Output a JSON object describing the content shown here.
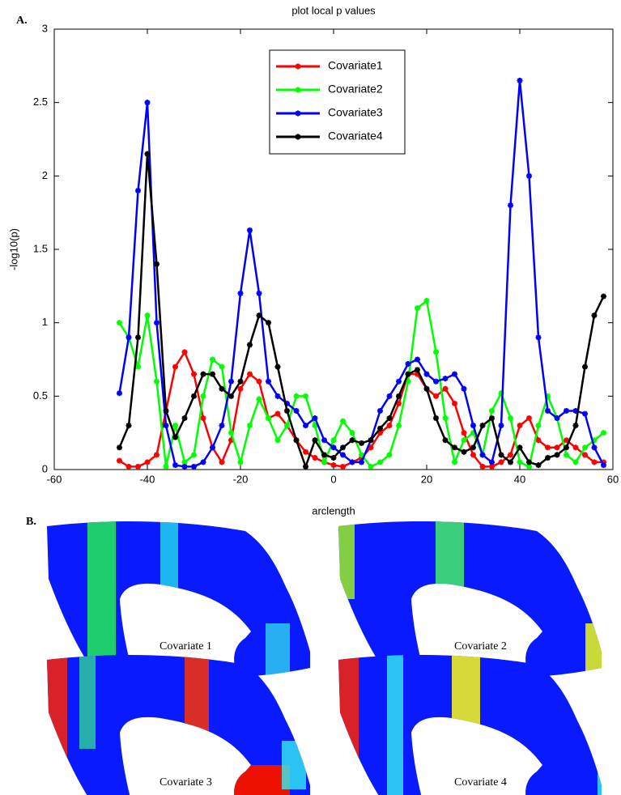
{
  "panel_a_label": "A.",
  "chart_data": {
    "type": "line",
    "title": "plot local p values",
    "xlabel": "arclength",
    "ylabel": "-log10(p)",
    "xlim": [
      -60,
      60
    ],
    "xticks": [
      -60,
      -40,
      -20,
      0,
      20,
      40,
      60
    ],
    "ylim": [
      0,
      3
    ],
    "yticks": [
      0,
      0.5,
      1,
      1.5,
      2,
      2.5,
      3
    ],
    "legend": "upper center",
    "grid": false,
    "x": [
      -46,
      -44,
      -42,
      -40,
      -38,
      -36,
      -34,
      -32,
      -30,
      -28,
      -26,
      -24,
      -22,
      -20,
      -18,
      -16,
      -14,
      -12,
      -10,
      -8,
      -6,
      -4,
      -2,
      0,
      2,
      4,
      6,
      8,
      10,
      12,
      14,
      16,
      18,
      20,
      22,
      24,
      26,
      28,
      30,
      32,
      34,
      36,
      38,
      40,
      42,
      44,
      46,
      48,
      50,
      52,
      54,
      56,
      58
    ],
    "series": [
      {
        "name": "Covariate1",
        "color": "#ff0000",
        "values": [
          0.06,
          0.02,
          0.02,
          0.05,
          0.1,
          0.4,
          0.7,
          0.8,
          0.65,
          0.35,
          0.15,
          0.05,
          0.2,
          0.55,
          0.65,
          0.6,
          0.35,
          0.38,
          0.3,
          0.2,
          0.12,
          0.08,
          0.05,
          0.03,
          0.02,
          0.05,
          0.08,
          0.15,
          0.25,
          0.3,
          0.45,
          0.65,
          0.65,
          0.55,
          0.5,
          0.55,
          0.45,
          0.25,
          0.1,
          0.02,
          0.02,
          0.05,
          0.1,
          0.3,
          0.35,
          0.2,
          0.15,
          0.15,
          0.2,
          0.15,
          0.1,
          0.05,
          0.05
        ]
      },
      {
        "name": "Covariate2",
        "color": "#00ff00",
        "values": [
          1.0,
          0.9,
          0.7,
          1.05,
          0.6,
          0.02,
          0.3,
          0.05,
          0.1,
          0.5,
          0.75,
          0.7,
          0.25,
          0.05,
          0.3,
          0.48,
          0.35,
          0.2,
          0.3,
          0.5,
          0.5,
          0.3,
          0.05,
          0.2,
          0.33,
          0.25,
          0.1,
          0.02,
          0.05,
          0.1,
          0.3,
          0.6,
          1.1,
          1.15,
          0.8,
          0.35,
          0.05,
          0.2,
          0.25,
          0.1,
          0.4,
          0.52,
          0.35,
          0.05,
          0.02,
          0.3,
          0.5,
          0.35,
          0.1,
          0.05,
          0.15,
          0.2,
          0.25
        ]
      },
      {
        "name": "Covariate3",
        "color": "#0000ff",
        "values": [
          0.52,
          0.9,
          1.9,
          2.5,
          1.0,
          0.3,
          0.03,
          0.02,
          0.02,
          0.05,
          0.15,
          0.3,
          0.6,
          1.2,
          1.63,
          1.2,
          0.6,
          0.5,
          0.45,
          0.4,
          0.3,
          0.35,
          0.2,
          0.15,
          0.1,
          0.05,
          0.05,
          0.2,
          0.4,
          0.5,
          0.6,
          0.72,
          0.75,
          0.65,
          0.6,
          0.62,
          0.65,
          0.55,
          0.3,
          0.1,
          0.05,
          0.3,
          1.8,
          2.65,
          2.0,
          0.9,
          0.4,
          0.35,
          0.4,
          0.4,
          0.38,
          0.15,
          0.03
        ]
      },
      {
        "name": "Covariate4",
        "color": "#000000",
        "values": [
          0.15,
          0.3,
          0.9,
          2.15,
          1.4,
          0.4,
          0.22,
          0.35,
          0.5,
          0.65,
          0.65,
          0.55,
          0.5,
          0.6,
          0.85,
          1.05,
          1.0,
          0.7,
          0.4,
          0.2,
          0.02,
          0.2,
          0.1,
          0.08,
          0.15,
          0.2,
          0.18,
          0.2,
          0.28,
          0.35,
          0.5,
          0.65,
          0.68,
          0.55,
          0.35,
          0.2,
          0.15,
          0.12,
          0.15,
          0.3,
          0.35,
          0.1,
          0.05,
          0.15,
          0.05,
          0.03,
          0.08,
          0.1,
          0.15,
          0.3,
          0.7,
          1.05,
          1.18
        ]
      }
    ]
  },
  "panel_b": {
    "label": "B.",
    "captions": [
      "Covariate 1",
      "Covariate 2",
      "Covariate 3",
      "Covariate 4"
    ]
  }
}
